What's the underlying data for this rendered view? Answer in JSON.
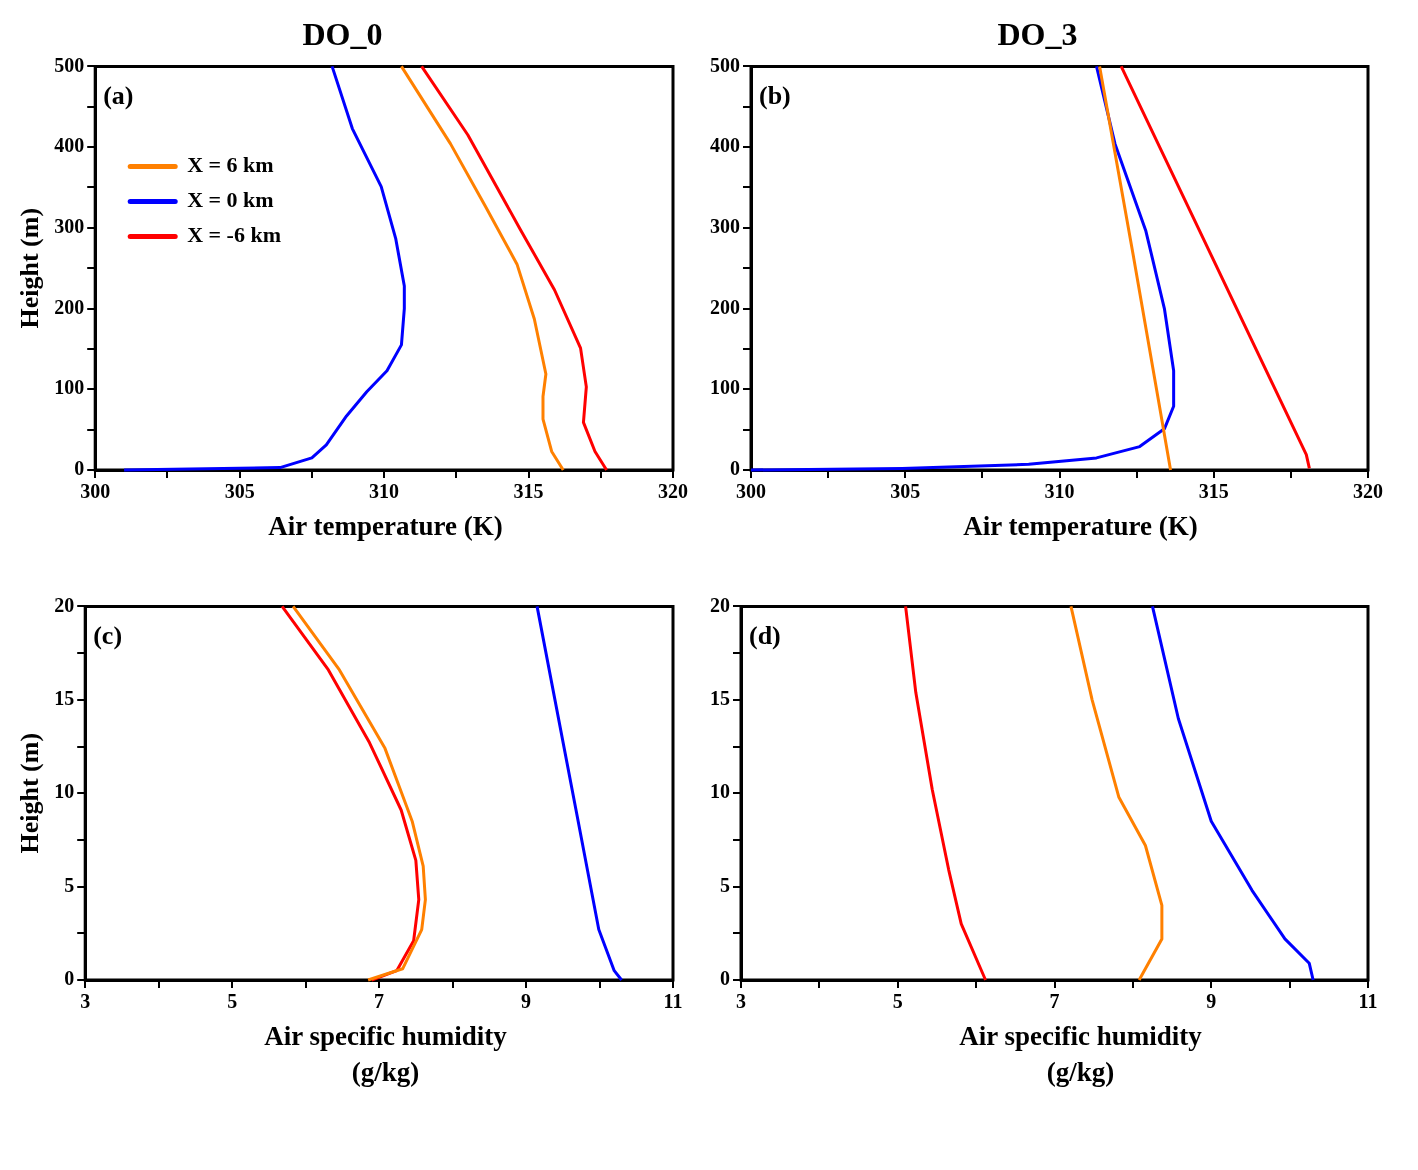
{
  "chart_data": [
    {
      "type": "line",
      "title": "DO_0",
      "xlabel": "Air temperature (K)",
      "ylabel": "Height (m)",
      "annotations": [
        "(a)"
      ],
      "legend": "top left",
      "marker": "none",
      "line_style": "solid",
      "grid": false,
      "xlim": [
        300,
        320
      ],
      "xticks": [
        300,
        {
          "value": 302.5,
          "label": null
        },
        305,
        {
          "value": 307.5,
          "label": null
        },
        310,
        {
          "value": 312.5,
          "label": null
        },
        315,
        {
          "value": 317.5,
          "label": null
        },
        320
      ],
      "ylim": [
        0,
        500
      ],
      "yticks": [
        0,
        {
          "value": 50,
          "label": null
        },
        100,
        {
          "value": 150,
          "label": null
        },
        200,
        {
          "value": 250,
          "label": null
        },
        300,
        {
          "value": 350,
          "label": null
        },
        400,
        {
          "value": 450,
          "label": null
        },
        500
      ],
      "series": [
        {
          "name": "X = 6 km",
          "color": "#ff8000",
          "x": [
            316.2,
            315.8,
            315.5,
            315.5,
            315.6,
            315.2,
            314.6,
            313.5,
            312.3,
            310.6
          ],
          "values": [
            0,
            23,
            63,
            91,
            119,
            187,
            255,
            327,
            404,
            500
          ]
        },
        {
          "name": "X = 0 km",
          "color": "#0000ff",
          "x": [
            301.0,
            306.4,
            307.5,
            308.0,
            308.7,
            309.4,
            310.1,
            310.6,
            310.7,
            310.7,
            310.4,
            309.9,
            308.9,
            308.2
          ],
          "values": [
            0,
            3,
            15,
            31,
            67,
            97,
            123,
            155,
            200,
            228,
            287,
            351,
            423,
            500
          ]
        },
        {
          "name": "X = -6 km",
          "color": "#ff0000",
          "x": [
            317.7,
            317.3,
            316.9,
            317.0,
            316.8,
            315.9,
            314.7,
            312.9,
            311.3
          ],
          "values": [
            0,
            23,
            59,
            103,
            151,
            223,
            299,
            415,
            500
          ]
        }
      ]
    },
    {
      "type": "line",
      "title": "DO_3",
      "xlabel": "Air temperature (K)",
      "annotations": [
        "(b)"
      ],
      "marker": "none",
      "line_style": "solid",
      "grid": false,
      "xlim": [
        300,
        320
      ],
      "xticks": [
        300,
        {
          "value": 302.5,
          "label": null
        },
        305,
        {
          "value": 307.5,
          "label": null
        },
        310,
        {
          "value": 312.5,
          "label": null
        },
        315,
        {
          "value": 317.5,
          "label": null
        },
        320
      ],
      "ylim": [
        0,
        500
      ],
      "yticks": [
        0,
        {
          "value": 50,
          "label": null
        },
        100,
        {
          "value": 150,
          "label": null
        },
        200,
        {
          "value": 250,
          "label": null
        },
        300,
        {
          "value": 350,
          "label": null
        },
        400,
        {
          "value": 450,
          "label": null
        },
        500
      ],
      "series": [
        {
          "color": "#ff8000",
          "x": [
            313.6,
            312.4,
            311.3
          ],
          "values": [
            0,
            264,
            500
          ]
        },
        {
          "color": "#0000ff",
          "x": [
            300.0,
            304.9,
            309.0,
            311.2,
            312.6,
            313.4,
            313.7,
            313.7,
            313.4,
            312.8,
            311.8,
            311.2
          ],
          "values": [
            0,
            2,
            7,
            15,
            29,
            51,
            79,
            123,
            200,
            296,
            404,
            500
          ]
        },
        {
          "color": "#ff0000",
          "x": [
            318.1,
            318.0,
            312.0
          ],
          "values": [
            2,
            19,
            500
          ]
        }
      ]
    },
    {
      "type": "line",
      "xlabel": "Air specific humidity (g/kg)",
      "ylabel": "Height (m)",
      "annotations": [
        "(c)"
      ],
      "marker": "none",
      "line_style": "solid",
      "grid": false,
      "xlim": [
        3,
        11
      ],
      "xticks": [
        3,
        {
          "value": 4,
          "label": null
        },
        5,
        {
          "value": 6,
          "label": null
        },
        7,
        {
          "value": 8,
          "label": null
        },
        9,
        {
          "value": 10,
          "label": null
        },
        11
      ],
      "ylim": [
        0,
        20
      ],
      "yticks": [
        0,
        {
          "value": 2.5,
          "label": null
        },
        5,
        {
          "value": 7.5,
          "label": null
        },
        10,
        {
          "value": 12.5,
          "label": null
        },
        15,
        {
          "value": 17.5,
          "label": null
        },
        20
      ],
      "series": [
        {
          "color": "#ff8000",
          "x": [
            6.85,
            7.32,
            7.58,
            7.63,
            7.6,
            7.45,
            7.08,
            6.46,
            5.83
          ],
          "values": [
            0,
            0.6,
            2.7,
            4.3,
            6.1,
            8.5,
            12.4,
            16.6,
            20
          ]
        },
        {
          "color": "#0000ff",
          "x": [
            10.3,
            10.2,
            9.99,
            9.68,
            9.15
          ],
          "values": [
            0,
            0.5,
            2.7,
            9.1,
            20
          ]
        },
        {
          "color": "#ff0000",
          "x": [
            6.9,
            7.24,
            7.47,
            7.54,
            7.5,
            7.3,
            6.87,
            6.31,
            5.68
          ],
          "values": [
            0,
            0.5,
            2.1,
            4.3,
            6.4,
            9.1,
            12.7,
            16.6,
            20
          ]
        }
      ]
    },
    {
      "type": "line",
      "xlabel": "Air specific humidity (g/kg)",
      "annotations": [
        "(d)"
      ],
      "marker": "none",
      "line_style": "solid",
      "grid": false,
      "xlim": [
        3,
        11
      ],
      "xticks": [
        3,
        {
          "value": 4,
          "label": null
        },
        5,
        {
          "value": 6,
          "label": null
        },
        7,
        {
          "value": 8,
          "label": null
        },
        9,
        {
          "value": 10,
          "label": null
        },
        11
      ],
      "ylim": [
        0,
        20
      ],
      "yticks": [
        0,
        {
          "value": 2.5,
          "label": null
        },
        5,
        {
          "value": 7.5,
          "label": null
        },
        10,
        {
          "value": 12.5,
          "label": null
        },
        15,
        {
          "value": 17.5,
          "label": null
        },
        20
      ],
      "series": [
        {
          "color": "#ff8000",
          "x": [
            8.08,
            8.37,
            8.37,
            8.16,
            7.82,
            7.48,
            7.21
          ],
          "values": [
            0,
            2.2,
            4.0,
            7.2,
            9.8,
            15.0,
            20
          ]
        },
        {
          "color": "#0000ff",
          "x": [
            10.3,
            10.25,
            9.94,
            9.52,
            9.0,
            8.58,
            8.25
          ],
          "values": [
            0,
            0.9,
            2.2,
            4.8,
            8.5,
            14.0,
            20
          ]
        },
        {
          "color": "#ff0000",
          "x": [
            6.12,
            5.81,
            5.65,
            5.44,
            5.23,
            5.1
          ],
          "values": [
            0,
            3.0,
            5.9,
            10.2,
            15.4,
            20
          ]
        }
      ]
    }
  ]
}
